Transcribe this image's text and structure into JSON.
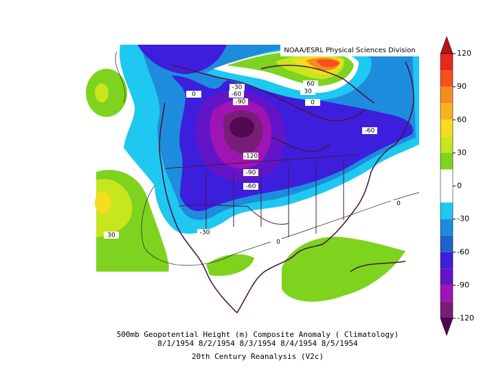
{
  "map": {
    "credit": "NOAA/ESRL Physical Sciences Division",
    "caption": [
      "500mb Geopotential Height (m) Composite Anomaly ( Climatology)",
      "8/1/1954 8/2/1954 8/3/1954 8/4/1954 8/5/1954",
      "20th Century Reanalysis (V2c)"
    ],
    "contour_labels": [
      "-30",
      "-60",
      "-90",
      "-120",
      "-90",
      "-60",
      "-60",
      "60",
      "30",
      "0",
      "0",
      "30",
      "-30",
      "0",
      "0"
    ],
    "colorbar": {
      "ticks": [
        120,
        90,
        60,
        30,
        0,
        -30,
        -60,
        -90,
        -120
      ],
      "colors": [
        "#b41414",
        "#e8281e",
        "#f5501e",
        "#f58c1e",
        "#f5b41e",
        "#f5dc1e",
        "#c8e61e",
        "#7ed31e",
        "#ffffff",
        "#ffffff",
        "#1ec8f0",
        "#1e8cdc",
        "#1e64c8",
        "#3c1edc",
        "#6414c8",
        "#a014b4",
        "#781e78",
        "#500a50"
      ]
    }
  }
}
